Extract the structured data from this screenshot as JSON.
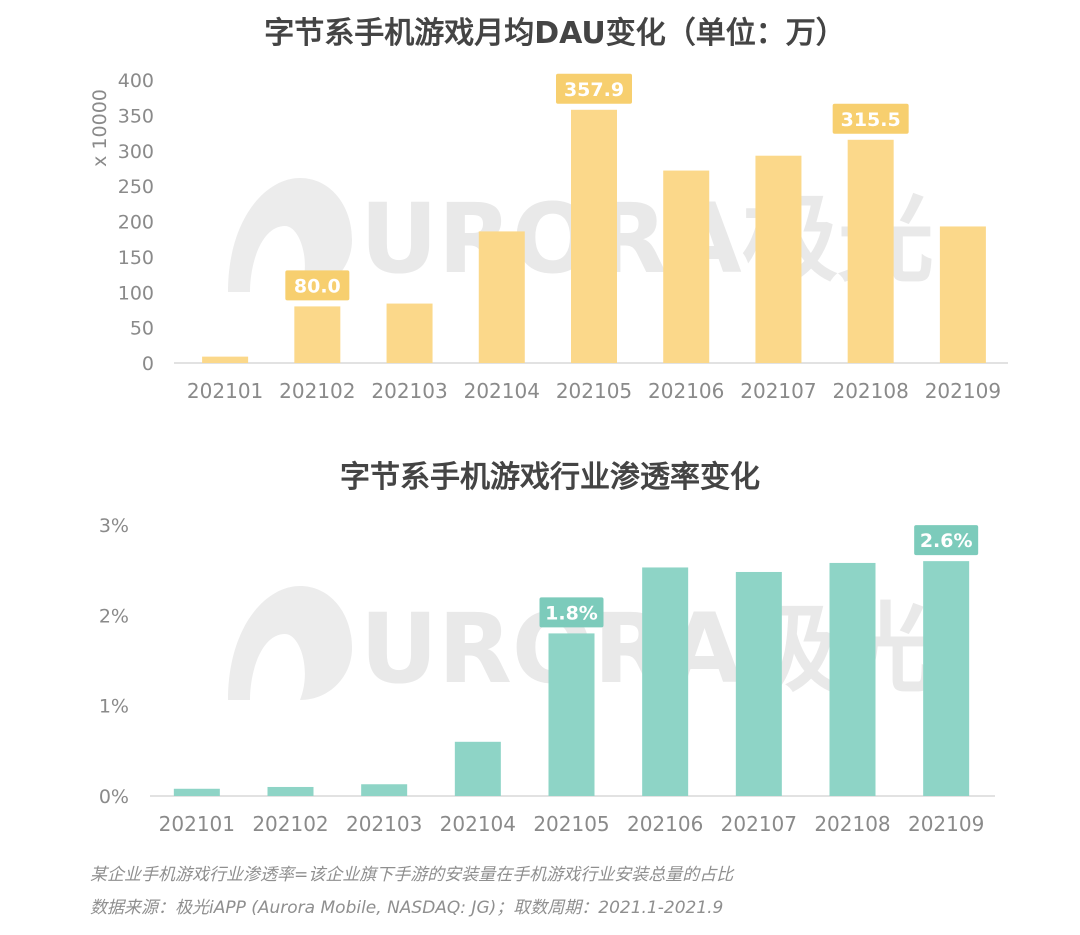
{
  "chart_data": [
    {
      "type": "bar",
      "title": "字节系手机游戏月均DAU变化（单位：万）",
      "ylabel": "x 10000",
      "ylim": [
        0,
        400
      ],
      "yticks": [
        "0",
        "50",
        "100",
        "150",
        "200",
        "250",
        "300",
        "350",
        "400"
      ],
      "categories": [
        "202101",
        "202102",
        "202103",
        "202104",
        "202105",
        "202106",
        "202107",
        "202108",
        "202109"
      ],
      "values": [
        9,
        80.0,
        84,
        186,
        357.9,
        272,
        293,
        315.5,
        193
      ],
      "labels": [
        {
          "index": 1,
          "text": "80.0"
        },
        {
          "index": 4,
          "text": "357.9"
        },
        {
          "index": 7,
          "text": "315.5"
        }
      ],
      "color": "#fbd88a",
      "label_color": "#f7cf6f"
    },
    {
      "type": "bar",
      "title": "字节系手机游戏行业渗透率变化",
      "ylim": [
        0,
        3
      ],
      "yticks": [
        "0%",
        "1%",
        "2%",
        "3%"
      ],
      "categories": [
        "202101",
        "202102",
        "202103",
        "202104",
        "202105",
        "202106",
        "202107",
        "202108",
        "202109"
      ],
      "values": [
        0.08,
        0.1,
        0.13,
        0.6,
        1.8,
        2.53,
        2.48,
        2.58,
        2.6
      ],
      "labels": [
        {
          "index": 4,
          "text": "1.8%"
        },
        {
          "index": 8,
          "text": "2.6%"
        }
      ],
      "color": "#8ed4c6",
      "label_color": "#7ccbbb"
    }
  ],
  "watermark": {
    "text": "URORA极光"
  },
  "footnotes": {
    "definition": "某企业手机游戏行业渗透率=该企业旗下手游的安装量在手机游戏行业安装总量的占比",
    "source": "数据来源：极光iAPP (Aurora Mobile, NASDAQ: JG)；取数周期：2021.1-2021.9"
  }
}
